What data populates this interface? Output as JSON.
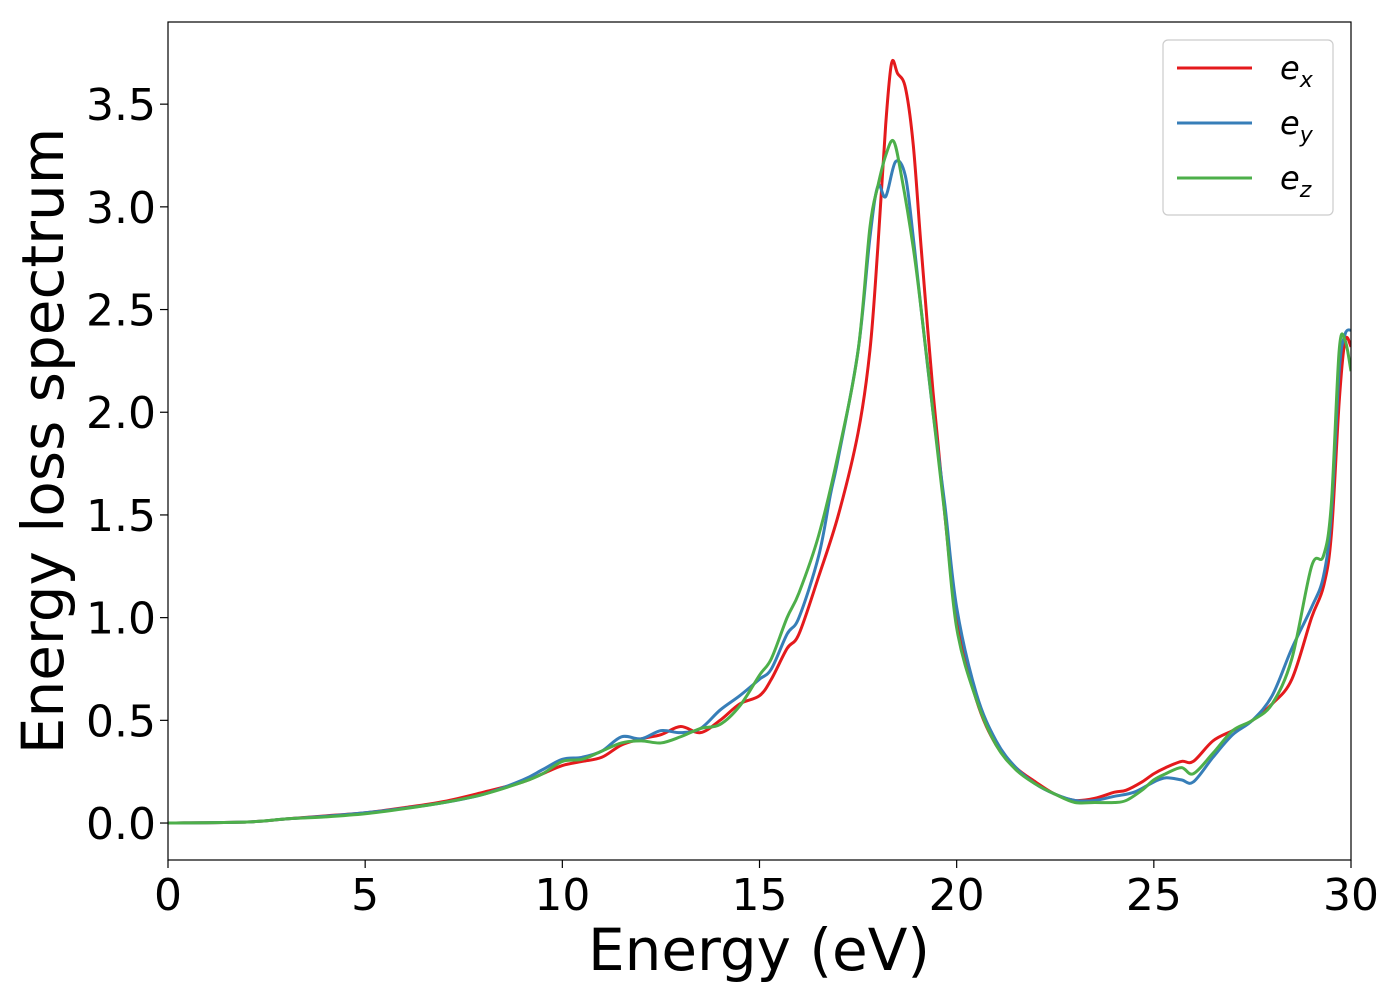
{
  "chart_data": {
    "type": "line",
    "xlabel": "Energy (eV)",
    "ylabel": "Energy loss spectrum",
    "xlim": [
      0,
      30
    ],
    "ylim": [
      -0.18,
      3.9
    ],
    "xticks": [
      0,
      5,
      10,
      15,
      20,
      25,
      30
    ],
    "yticks": [
      0.0,
      0.5,
      1.0,
      1.5,
      2.0,
      2.5,
      3.0,
      3.5
    ],
    "xtick_labels": [
      "0",
      "5",
      "10",
      "15",
      "20",
      "25",
      "30"
    ],
    "ytick_labels": [
      "0.0",
      "0.5",
      "1.0",
      "1.5",
      "2.0",
      "2.5",
      "3.0",
      "3.5"
    ],
    "grid": false,
    "legend_position": "top-right",
    "series": [
      {
        "name": "e",
        "name_subscript": "x",
        "color": "#e41a1c",
        "points": [
          [
            0,
            0
          ],
          [
            2,
            0.005
          ],
          [
            3,
            0.02
          ],
          [
            4,
            0.035
          ],
          [
            5,
            0.05
          ],
          [
            6,
            0.075
          ],
          [
            7,
            0.105
          ],
          [
            8,
            0.15
          ],
          [
            9,
            0.2
          ],
          [
            9.5,
            0.24
          ],
          [
            10,
            0.28
          ],
          [
            10.5,
            0.3
          ],
          [
            11,
            0.32
          ],
          [
            11.5,
            0.38
          ],
          [
            12,
            0.41
          ],
          [
            12.5,
            0.43
          ],
          [
            13,
            0.47
          ],
          [
            13.5,
            0.44
          ],
          [
            14,
            0.5
          ],
          [
            14.5,
            0.58
          ],
          [
            15,
            0.62
          ],
          [
            15.3,
            0.7
          ],
          [
            15.7,
            0.85
          ],
          [
            16,
            0.92
          ],
          [
            16.5,
            1.2
          ],
          [
            17,
            1.5
          ],
          [
            17.5,
            1.9
          ],
          [
            17.8,
            2.3
          ],
          [
            18,
            2.8
          ],
          [
            18.2,
            3.4
          ],
          [
            18.35,
            3.7
          ],
          [
            18.5,
            3.65
          ],
          [
            18.7,
            3.58
          ],
          [
            18.9,
            3.3
          ],
          [
            19.1,
            2.8
          ],
          [
            19.4,
            2.1
          ],
          [
            19.7,
            1.5
          ],
          [
            20,
            1.0
          ],
          [
            20.5,
            0.6
          ],
          [
            21,
            0.38
          ],
          [
            21.5,
            0.27
          ],
          [
            22,
            0.2
          ],
          [
            22.5,
            0.14
          ],
          [
            23,
            0.11
          ],
          [
            23.5,
            0.12
          ],
          [
            24,
            0.15
          ],
          [
            24.3,
            0.16
          ],
          [
            24.7,
            0.2
          ],
          [
            25,
            0.24
          ],
          [
            25.3,
            0.27
          ],
          [
            25.7,
            0.3
          ],
          [
            26,
            0.3
          ],
          [
            26.5,
            0.4
          ],
          [
            27,
            0.45
          ],
          [
            27.5,
            0.5
          ],
          [
            28,
            0.58
          ],
          [
            28.5,
            0.7
          ],
          [
            29,
            1.0
          ],
          [
            29.3,
            1.15
          ],
          [
            29.5,
            1.4
          ],
          [
            29.7,
            2.05
          ],
          [
            29.85,
            2.35
          ],
          [
            30,
            2.32
          ]
        ]
      },
      {
        "name": "e",
        "name_subscript": "y",
        "color": "#377eb8",
        "points": [
          [
            0,
            0
          ],
          [
            2,
            0.005
          ],
          [
            3,
            0.02
          ],
          [
            4,
            0.033
          ],
          [
            5,
            0.05
          ],
          [
            6,
            0.072
          ],
          [
            7,
            0.1
          ],
          [
            8,
            0.14
          ],
          [
            9,
            0.21
          ],
          [
            9.5,
            0.26
          ],
          [
            10,
            0.31
          ],
          [
            10.5,
            0.32
          ],
          [
            11,
            0.35
          ],
          [
            11.5,
            0.42
          ],
          [
            12,
            0.41
          ],
          [
            12.5,
            0.45
          ],
          [
            13,
            0.44
          ],
          [
            13.5,
            0.46
          ],
          [
            14,
            0.55
          ],
          [
            14.5,
            0.62
          ],
          [
            15,
            0.7
          ],
          [
            15.3,
            0.75
          ],
          [
            15.7,
            0.92
          ],
          [
            16,
            1.0
          ],
          [
            16.5,
            1.3
          ],
          [
            16.8,
            1.6
          ],
          [
            17,
            1.78
          ],
          [
            17.5,
            2.3
          ],
          [
            17.8,
            2.85
          ],
          [
            18,
            3.1
          ],
          [
            18.2,
            3.05
          ],
          [
            18.45,
            3.22
          ],
          [
            18.7,
            3.15
          ],
          [
            18.9,
            2.85
          ],
          [
            19.1,
            2.5
          ],
          [
            19.4,
            2.0
          ],
          [
            19.7,
            1.55
          ],
          [
            20,
            1.05
          ],
          [
            20.5,
            0.63
          ],
          [
            21,
            0.4
          ],
          [
            21.5,
            0.27
          ],
          [
            22,
            0.19
          ],
          [
            22.5,
            0.14
          ],
          [
            23,
            0.11
          ],
          [
            23.5,
            0.11
          ],
          [
            24,
            0.13
          ],
          [
            24.5,
            0.15
          ],
          [
            25,
            0.2
          ],
          [
            25.3,
            0.22
          ],
          [
            25.7,
            0.21
          ],
          [
            26,
            0.2
          ],
          [
            26.5,
            0.32
          ],
          [
            27,
            0.43
          ],
          [
            27.5,
            0.5
          ],
          [
            28,
            0.62
          ],
          [
            28.5,
            0.85
          ],
          [
            29,
            1.05
          ],
          [
            29.3,
            1.2
          ],
          [
            29.5,
            1.5
          ],
          [
            29.7,
            2.2
          ],
          [
            29.85,
            2.38
          ],
          [
            30,
            2.4
          ]
        ]
      },
      {
        "name": "e",
        "name_subscript": "z",
        "color": "#4daf4a",
        "points": [
          [
            0,
            0
          ],
          [
            2,
            0.005
          ],
          [
            3,
            0.02
          ],
          [
            4,
            0.03
          ],
          [
            5,
            0.045
          ],
          [
            6,
            0.07
          ],
          [
            7,
            0.1
          ],
          [
            8,
            0.14
          ],
          [
            9,
            0.2
          ],
          [
            9.5,
            0.24
          ],
          [
            10,
            0.3
          ],
          [
            10.5,
            0.31
          ],
          [
            11,
            0.35
          ],
          [
            11.5,
            0.39
          ],
          [
            12,
            0.4
          ],
          [
            12.5,
            0.39
          ],
          [
            13,
            0.42
          ],
          [
            13.5,
            0.46
          ],
          [
            14,
            0.48
          ],
          [
            14.5,
            0.57
          ],
          [
            15,
            0.72
          ],
          [
            15.3,
            0.8
          ],
          [
            15.7,
            1.0
          ],
          [
            16,
            1.12
          ],
          [
            16.5,
            1.4
          ],
          [
            17,
            1.8
          ],
          [
            17.5,
            2.3
          ],
          [
            17.8,
            2.9
          ],
          [
            18,
            3.1
          ],
          [
            18.2,
            3.25
          ],
          [
            18.4,
            3.32
          ],
          [
            18.6,
            3.15
          ],
          [
            18.9,
            2.8
          ],
          [
            19.1,
            2.5
          ],
          [
            19.4,
            2.0
          ],
          [
            19.7,
            1.5
          ],
          [
            20,
            0.95
          ],
          [
            20.5,
            0.6
          ],
          [
            21,
            0.38
          ],
          [
            21.5,
            0.26
          ],
          [
            22,
            0.19
          ],
          [
            22.5,
            0.14
          ],
          [
            23,
            0.1
          ],
          [
            23.5,
            0.1
          ],
          [
            24,
            0.1
          ],
          [
            24.3,
            0.11
          ],
          [
            24.7,
            0.16
          ],
          [
            25,
            0.21
          ],
          [
            25.3,
            0.24
          ],
          [
            25.7,
            0.27
          ],
          [
            26,
            0.24
          ],
          [
            26.5,
            0.34
          ],
          [
            27,
            0.45
          ],
          [
            27.5,
            0.5
          ],
          [
            28,
            0.58
          ],
          [
            28.5,
            0.8
          ],
          [
            29,
            1.25
          ],
          [
            29.3,
            1.3
          ],
          [
            29.5,
            1.55
          ],
          [
            29.7,
            2.3
          ],
          [
            29.85,
            2.35
          ],
          [
            30,
            2.2
          ]
        ]
      }
    ]
  }
}
